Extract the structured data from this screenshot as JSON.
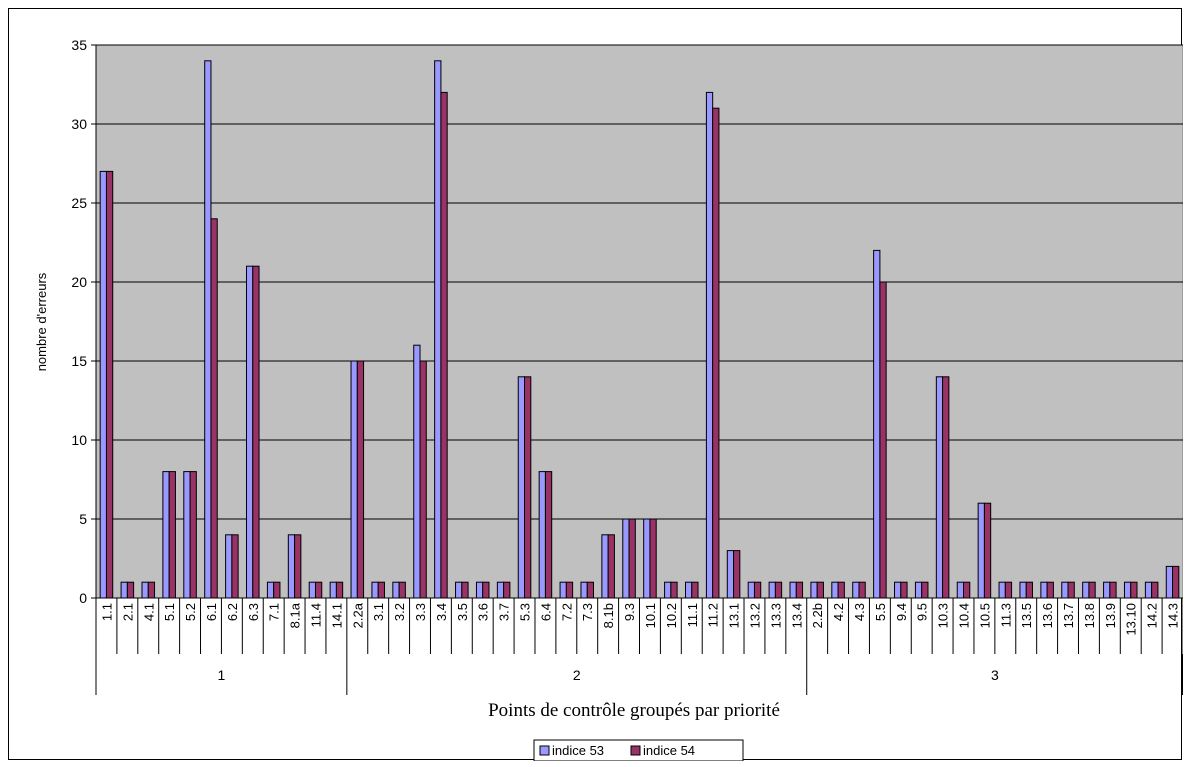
{
  "chart_data": {
    "type": "bar",
    "title": "",
    "xlabel": "Points de contrôle groupés par priorité",
    "ylabel": "nombre d'erreurs",
    "ylim": [
      0,
      35
    ],
    "yticks": [
      "0",
      "5",
      "10",
      "15",
      "20",
      "25",
      "30",
      "35"
    ],
    "grid": true,
    "legend_position": "bottom",
    "plot_background": "#c0c0c0",
    "groups": [
      {
        "label": "1",
        "categories": [
          "1.1",
          "2.1",
          "4.1",
          "5.1",
          "5.2",
          "6.1",
          "6.2",
          "6.3",
          "7.1",
          "8.1a",
          "11.4",
          "14.1"
        ]
      },
      {
        "label": "2",
        "categories": [
          "2.2a",
          "3.1",
          "3.2",
          "3.3",
          "3.4",
          "3.5",
          "3.6",
          "3.7",
          "5.3",
          "6.4",
          "7.2",
          "7.3",
          "8.1b",
          "9.3",
          "10.1",
          "10.2",
          "11.1",
          "11.2",
          "13.1",
          "13.2",
          "13.3",
          "13.4"
        ]
      },
      {
        "label": "3",
        "categories": [
          "2.2b",
          "4.2",
          "4.3",
          "5.5",
          "9.4",
          "9.5",
          "10.3",
          "10.4",
          "10.5",
          "11.3",
          "13.5",
          "13.6",
          "13.7",
          "13.8",
          "13.9",
          "13.10",
          "14.2",
          "14.3"
        ]
      }
    ],
    "series": [
      {
        "name": "indice 53",
        "color": "#9999ff",
        "values": [
          27,
          1,
          1,
          8,
          8,
          34,
          4,
          21,
          1,
          4,
          1,
          1,
          15,
          1,
          1,
          16,
          34,
          1,
          1,
          1,
          14,
          8,
          1,
          1,
          4,
          5,
          5,
          1,
          1,
          32,
          3,
          1,
          1,
          1,
          1,
          1,
          1,
          22,
          1,
          1,
          14,
          1,
          6,
          1,
          1,
          1,
          1,
          1,
          1,
          1,
          1,
          2
        ]
      },
      {
        "name": "indice 54",
        "color": "#993366",
        "values": [
          27,
          1,
          1,
          8,
          8,
          24,
          4,
          21,
          1,
          4,
          1,
          1,
          15,
          1,
          1,
          15,
          32,
          1,
          1,
          1,
          14,
          8,
          1,
          1,
          4,
          5,
          5,
          1,
          1,
          31,
          3,
          1,
          1,
          1,
          1,
          1,
          1,
          20,
          1,
          1,
          14,
          1,
          6,
          1,
          1,
          1,
          1,
          1,
          1,
          1,
          1,
          2
        ]
      }
    ]
  }
}
